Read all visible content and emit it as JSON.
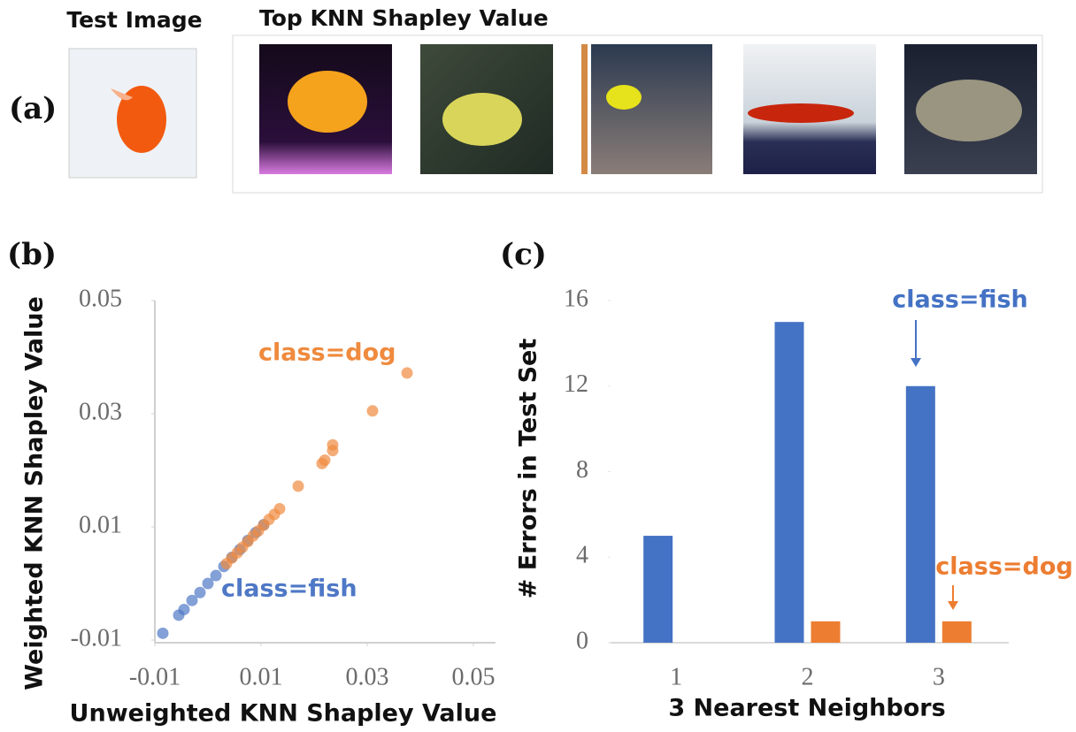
{
  "figure_a": {
    "label": "(a)",
    "test_title": "Test Image",
    "top_title": "Top KNN Shapley Value"
  },
  "chart_data": [
    {
      "type": "scatter",
      "panel": "(b)",
      "x_label": "Unweighted KNN Shapley Value",
      "y_label": "Weighted KNN Shapley Value",
      "xlim": [
        -0.01,
        0.05
      ],
      "ylim": [
        -0.01,
        0.05
      ],
      "xticks": [
        -0.01,
        0.01,
        0.03,
        0.05
      ],
      "yticks": [
        -0.01,
        0.01,
        0.03,
        0.05
      ],
      "series": [
        {
          "name": "class=fish",
          "color": "#4f78c6",
          "x": [
            -0.0085,
            -0.0055,
            -0.0045,
            -0.003,
            -0.0015,
            0.0,
            0.0015,
            0.003,
            0.0045,
            0.006,
            0.0075,
            0.009,
            0.0105
          ],
          "y": [
            -0.0088,
            -0.0056,
            -0.0046,
            -0.003,
            -0.0016,
            0.0,
            0.0014,
            0.003,
            0.0046,
            0.006,
            0.0076,
            0.009,
            0.0104
          ]
        },
        {
          "name": "class=dog",
          "color": "#ef8a3e",
          "x": [
            0.0035,
            0.0045,
            0.0055,
            0.0065,
            0.0075,
            0.0085,
            0.0095,
            0.0105,
            0.0115,
            0.0125,
            0.0135,
            0.017,
            0.0215,
            0.022,
            0.0235,
            0.0235,
            0.031,
            0.0375
          ],
          "y": [
            0.0035,
            0.0045,
            0.0054,
            0.0064,
            0.0074,
            0.0084,
            0.0093,
            0.0103,
            0.0113,
            0.0122,
            0.0132,
            0.0172,
            0.0212,
            0.0218,
            0.0235,
            0.0245,
            0.0305,
            0.0372
          ]
        }
      ]
    },
    {
      "type": "bar",
      "panel": "(c)",
      "x_label": "3 Nearest Neighbors",
      "y_label": "# Errors in Test Set",
      "categories": [
        "1",
        "2",
        "3"
      ],
      "ylim": [
        0,
        16
      ],
      "yticks": [
        0,
        4,
        8,
        12,
        16
      ],
      "series": [
        {
          "name": "class=fish",
          "color": "#4472c4",
          "values": [
            5,
            15,
            12
          ]
        },
        {
          "name": "class=dog",
          "color": "#ed7d31",
          "values": [
            0,
            1,
            1
          ]
        }
      ]
    }
  ]
}
